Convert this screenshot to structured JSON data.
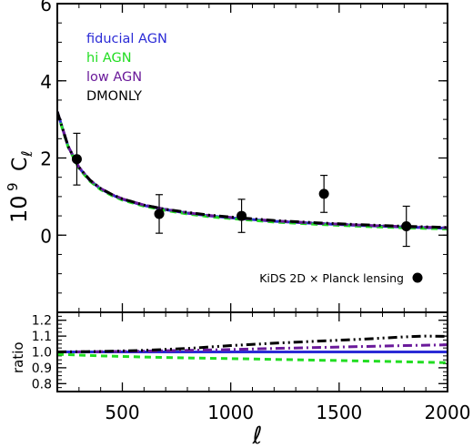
{
  "chart_data": [
    {
      "type": "line",
      "panel": "top",
      "xlabel": "ℓ",
      "ylabel": "10⁹ C_ℓ",
      "ylabel_main": "10",
      "ylabel_exp": "9",
      "ylabel_sym": "C",
      "ylabel_sub": "ℓ",
      "xlim": [
        200,
        2000
      ],
      "ylim": [
        -2,
        6
      ],
      "yticks": [
        0,
        2,
        4,
        6
      ],
      "ytick_labels": [
        "0",
        "2",
        "4",
        "6"
      ],
      "grid": false,
      "legend_position": "top-left",
      "series": [
        {
          "name": "fiducial AGN",
          "color": "#2b2bd6",
          "style": "solid",
          "x": [
            200,
            250,
            300,
            350,
            400,
            450,
            500,
            600,
            700,
            800,
            900,
            1000,
            1200,
            1400,
            1600,
            1800,
            2000
          ],
          "y": [
            3.2,
            2.3,
            1.75,
            1.42,
            1.2,
            1.05,
            0.93,
            0.77,
            0.66,
            0.57,
            0.5,
            0.45,
            0.36,
            0.3,
            0.25,
            0.21,
            0.18
          ]
        },
        {
          "name": "hi AGN",
          "color": "#22dd22",
          "style": "dashed",
          "x": [
            200,
            250,
            300,
            350,
            400,
            450,
            500,
            600,
            700,
            800,
            900,
            1000,
            1200,
            1400,
            1600,
            1800,
            2000
          ],
          "y": [
            3.18,
            2.28,
            1.73,
            1.4,
            1.18,
            1.03,
            0.91,
            0.75,
            0.64,
            0.55,
            0.48,
            0.43,
            0.34,
            0.28,
            0.23,
            0.19,
            0.16
          ]
        },
        {
          "name": "low AGN",
          "color": "#6a1a9a",
          "style": "dashdot",
          "x": [
            200,
            250,
            300,
            350,
            400,
            450,
            500,
            600,
            700,
            800,
            900,
            1000,
            1200,
            1400,
            1600,
            1800,
            2000
          ],
          "y": [
            3.2,
            2.3,
            1.76,
            1.43,
            1.21,
            1.06,
            0.94,
            0.78,
            0.67,
            0.58,
            0.51,
            0.46,
            0.37,
            0.31,
            0.26,
            0.22,
            0.19
          ]
        },
        {
          "name": "DMONLY",
          "color": "#000000",
          "style": "dashdotdot",
          "x": [
            200,
            250,
            300,
            350,
            400,
            450,
            500,
            600,
            700,
            800,
            900,
            1000,
            1200,
            1400,
            1600,
            1800,
            2000
          ],
          "y": [
            3.2,
            2.3,
            1.76,
            1.43,
            1.21,
            1.06,
            0.94,
            0.78,
            0.67,
            0.59,
            0.52,
            0.47,
            0.38,
            0.32,
            0.27,
            0.23,
            0.2
          ]
        }
      ],
      "points": {
        "name": "KiDS 2D × Planck lensing",
        "x": [
          290,
          670,
          1050,
          1430,
          1810
        ],
        "y": [
          1.97,
          0.55,
          0.5,
          1.07,
          0.23
        ],
        "yerr": [
          0.67,
          0.5,
          0.43,
          0.48,
          0.52
        ]
      }
    },
    {
      "type": "line",
      "panel": "bottom",
      "xlabel": "ℓ",
      "ylabel": "ratio",
      "xlim": [
        200,
        2000
      ],
      "ylim": [
        0.75,
        1.25
      ],
      "xticks": [
        500,
        1000,
        1500,
        2000
      ],
      "xtick_labels": [
        "500",
        "1000",
        "1500",
        "2000"
      ],
      "yticks": [
        0.8,
        0.9,
        1.0,
        1.1,
        1.2
      ],
      "ytick_labels": [
        "0.8",
        "0.9",
        "1.0",
        "1.1",
        "1.2"
      ],
      "grid": false,
      "series": [
        {
          "name": "fiducial AGN",
          "color": "#2b2bd6",
          "style": "solid",
          "x": [
            200,
            2000
          ],
          "y": [
            1.0,
            1.0
          ]
        },
        {
          "name": "hi AGN",
          "color": "#22dd22",
          "style": "dashed",
          "x": [
            200,
            400,
            600,
            800,
            1000,
            1200,
            1400,
            1600,
            1800,
            2000
          ],
          "y": [
            0.985,
            0.975,
            0.968,
            0.962,
            0.958,
            0.953,
            0.948,
            0.943,
            0.938,
            0.932
          ]
        },
        {
          "name": "low AGN",
          "color": "#6a1a9a",
          "style": "dashdot",
          "x": [
            200,
            400,
            600,
            800,
            1000,
            1200,
            1400,
            1600,
            1800,
            2000
          ],
          "y": [
            1.0,
            1.002,
            1.005,
            1.01,
            1.015,
            1.022,
            1.028,
            1.034,
            1.04,
            1.045
          ]
        },
        {
          "name": "DMONLY",
          "color": "#000000",
          "style": "dashdotdot",
          "x": [
            200,
            400,
            600,
            800,
            1000,
            1200,
            1400,
            1600,
            1800,
            1900,
            2000
          ],
          "y": [
            1.0,
            1.003,
            1.01,
            1.022,
            1.04,
            1.055,
            1.068,
            1.08,
            1.095,
            1.1,
            1.098
          ]
        }
      ]
    }
  ]
}
